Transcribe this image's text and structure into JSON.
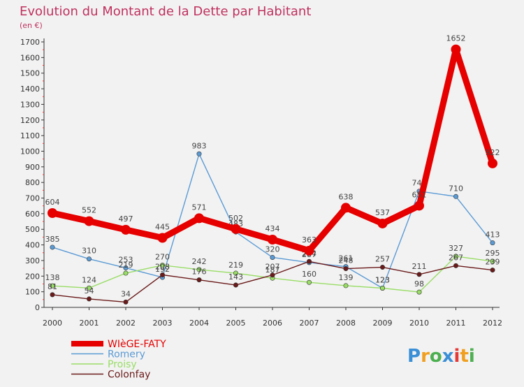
{
  "chart_data": {
    "type": "line",
    "title": "Evolution du Montant de la Dette par Habitant",
    "subtitle": "(en €)",
    "x": [
      "2000",
      "2001",
      "2002",
      "2003",
      "2004",
      "2005",
      "2006",
      "2007",
      "2008",
      "2009",
      "2010",
      "2011",
      "2012"
    ],
    "ylim": [
      0,
      1700
    ],
    "yticks": [
      0,
      100,
      200,
      300,
      400,
      500,
      600,
      700,
      800,
      900,
      1000,
      1100,
      1200,
      1300,
      1400,
      1500,
      1600,
      1700
    ],
    "grid": false,
    "legend_position": "bottom-left",
    "series": [
      {
        "name": "WIèGE-FATY",
        "color": "#e60000",
        "emphasis": true,
        "values": [
          604,
          552,
          497,
          445,
          571,
          502,
          434,
          363,
          638,
          537,
          651,
          1652,
          922
        ]
      },
      {
        "name": "Romery",
        "color": "#5b9bd5",
        "emphasis": false,
        "values": [
          385,
          310,
          253,
          192,
          983,
          483,
          320,
          287,
          261,
          123,
          744,
          710,
          413
        ]
      },
      {
        "name": "Proisy",
        "color": "#99dd66",
        "emphasis": false,
        "values": [
          138,
          124,
          219,
          270,
          242,
          219,
          187,
          160,
          139,
          123,
          98,
          327,
          295
        ]
      },
      {
        "name": "Colonfay",
        "color": "#6b1a1a",
        "emphasis": false,
        "values": [
          81,
          54,
          34,
          208,
          176,
          143,
          207,
          294,
          248,
          257,
          211,
          267,
          239
        ]
      }
    ]
  },
  "brand": {
    "letters": [
      "P",
      "r",
      "o",
      "x",
      "i",
      "t",
      "i"
    ],
    "letter_colors": [
      "#3a8fd6",
      "#f0a020",
      "#4caf50",
      "#3a8fd6",
      "#e53935",
      "#f0a020",
      "#4caf50"
    ]
  }
}
